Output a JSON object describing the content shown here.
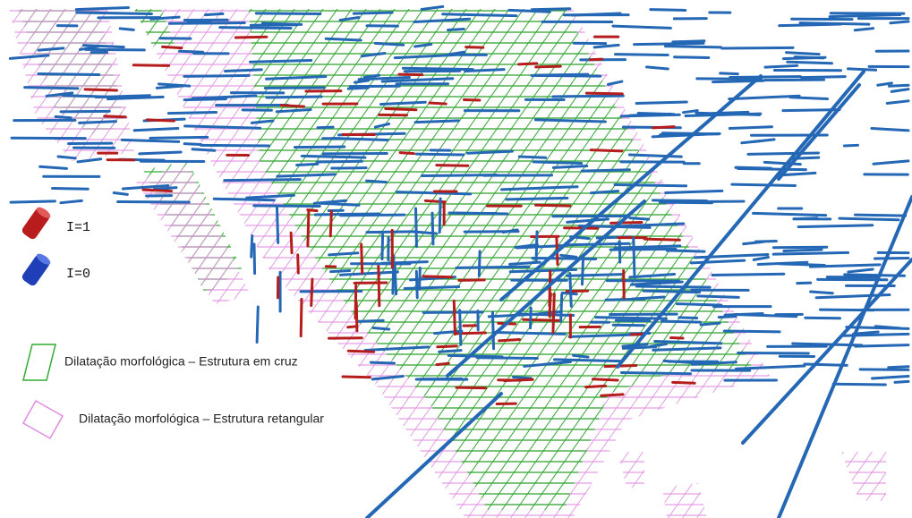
{
  "legend": {
    "cylinders": [
      {
        "label": "I=1"
      },
      {
        "label": "I=0"
      }
    ],
    "structures": [
      {
        "label": "Dilatação morfológica – Estrutura em cruz"
      },
      {
        "label": "Dilatação morfológica – Estrutura retangular"
      }
    ]
  }
}
